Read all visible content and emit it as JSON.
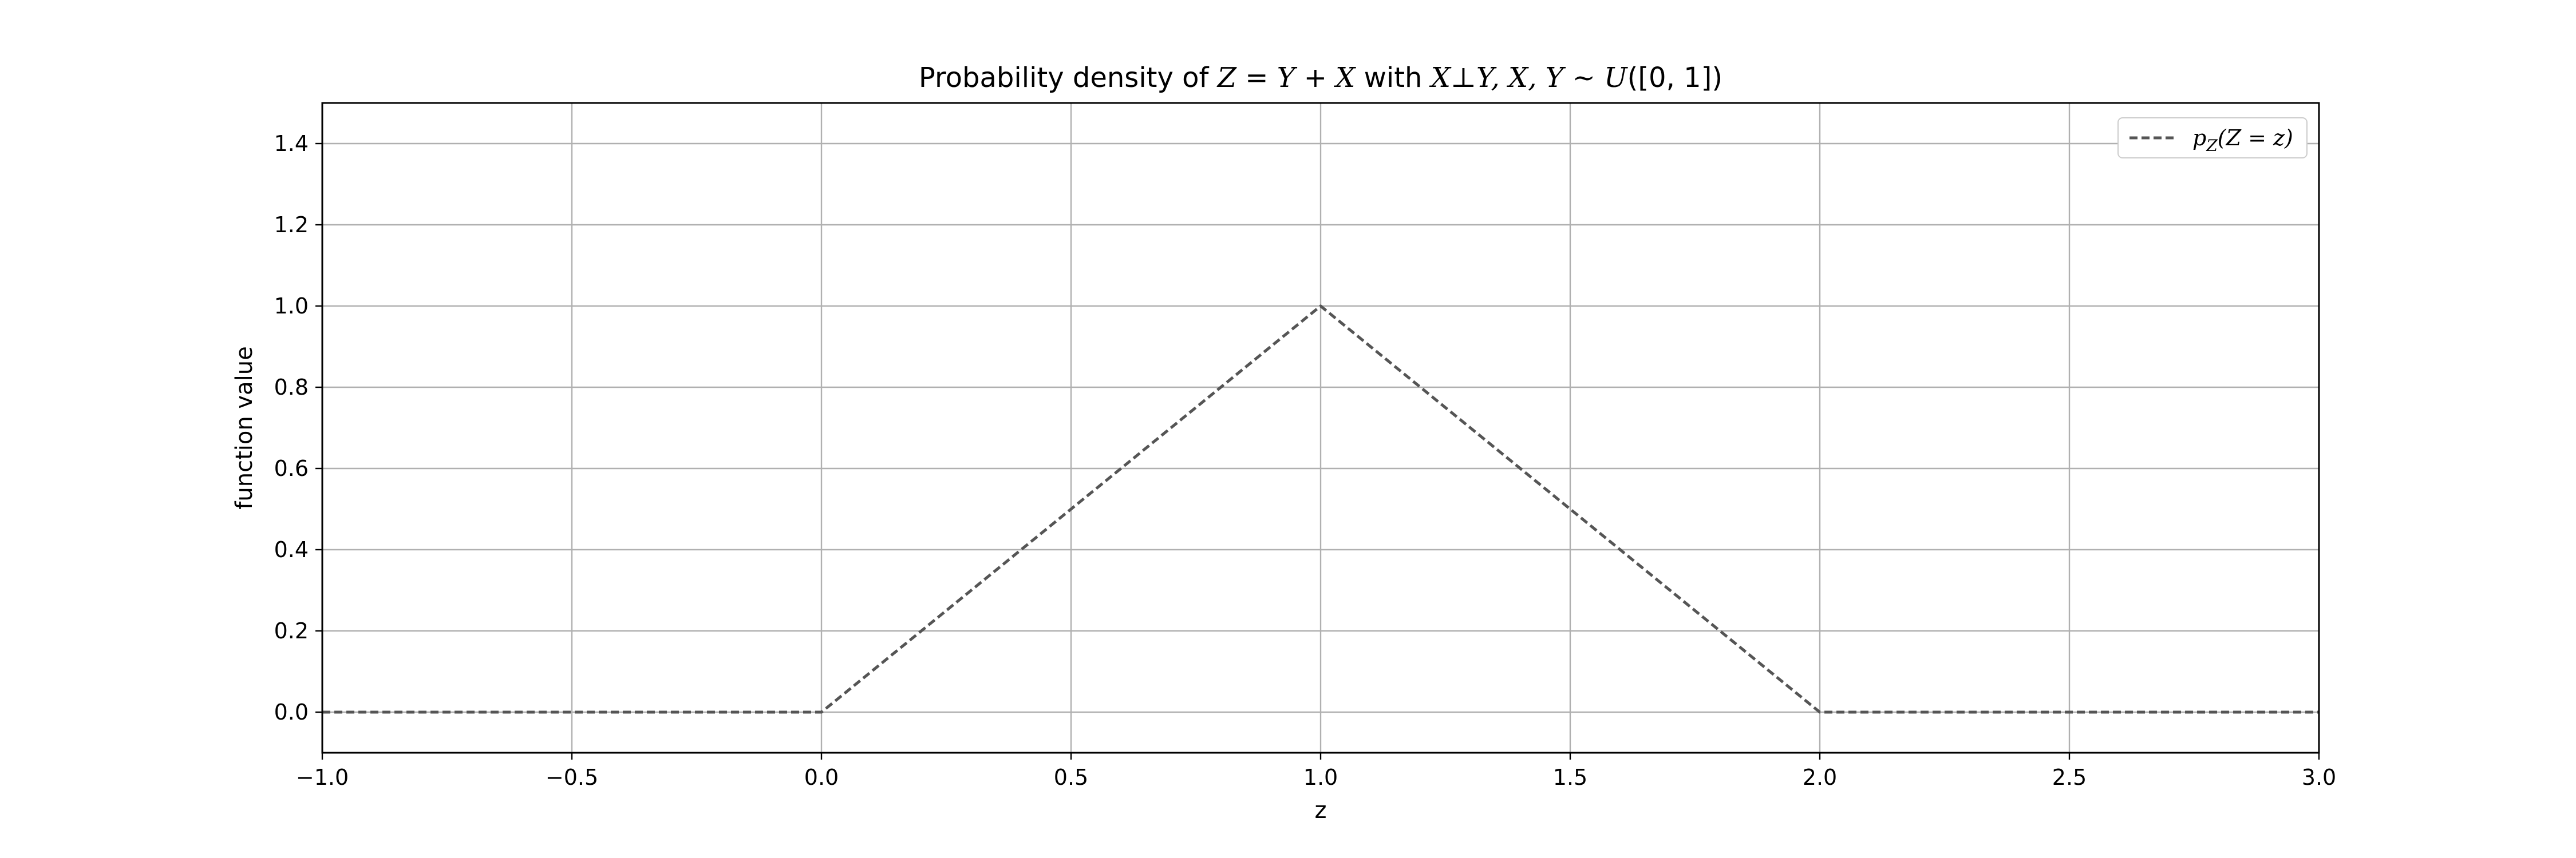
{
  "chart_data": {
    "type": "line",
    "title": "Probability density of Z = Y + X with X⊥Y, X, Y ~ U([0, 1])",
    "title_parts": {
      "prefix": "Probability density of ",
      "eq1": "Z = Y + X",
      "middle": " with ",
      "eq2": "X⊥Y, X, Y ~ U",
      "suffix": "([0, 1])"
    },
    "xlabel": "z",
    "ylabel": "function value",
    "xlim": [
      -1.0,
      3.0
    ],
    "ylim": [
      -0.1,
      1.5
    ],
    "xticks": [
      -1.0,
      -0.5,
      0.0,
      0.5,
      1.0,
      1.5,
      2.0,
      2.5,
      3.0
    ],
    "xtick_labels": [
      "−1.0",
      "−0.5",
      "0.0",
      "0.5",
      "1.0",
      "1.5",
      "2.0",
      "2.5",
      "3.0"
    ],
    "yticks": [
      0.0,
      0.2,
      0.4,
      0.6,
      0.8,
      1.0,
      1.2,
      1.4
    ],
    "ytick_labels": [
      "0.0",
      "0.2",
      "0.4",
      "0.6",
      "0.8",
      "1.0",
      "1.2",
      "1.4"
    ],
    "grid": true,
    "legend_position": "top-right",
    "series": [
      {
        "name": "p_Z(Z = z)",
        "legend_math": {
          "base": "p",
          "sub": "Z",
          "arg": "(Z = z)"
        },
        "style": "dashed",
        "color": "#555555",
        "x": [
          -1.0,
          0.0,
          1.0,
          2.0,
          3.0
        ],
        "y": [
          0.0,
          0.0,
          1.0,
          0.0,
          0.0
        ]
      }
    ]
  }
}
